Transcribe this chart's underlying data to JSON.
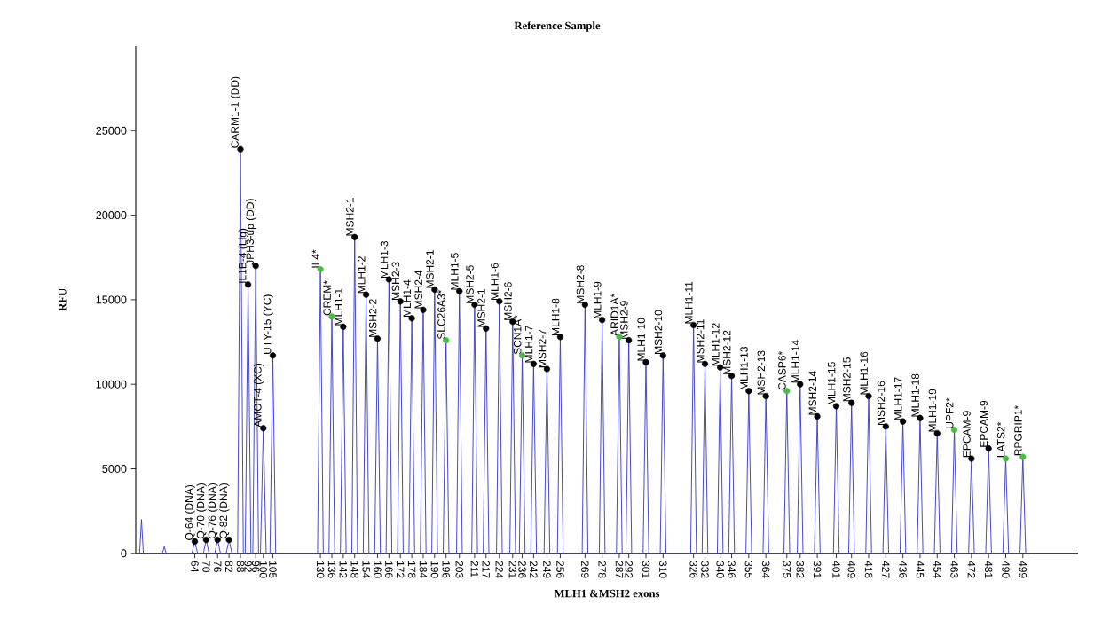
{
  "chart_data": {
    "type": "line",
    "title": "Reference Sample",
    "xlabel": "MLH1 &MSH2 exons",
    "ylabel": "RFU",
    "xlim": [
      33,
      528
    ],
    "ylim": [
      0,
      30000
    ],
    "xticks": [
      64,
      70,
      76,
      82,
      88,
      92,
      96,
      100,
      105,
      130,
      136,
      142,
      148,
      154,
      160,
      166,
      172,
      178,
      184,
      190,
      196,
      203,
      211,
      217,
      224,
      231,
      236,
      242,
      249,
      256,
      269,
      278,
      287,
      292,
      301,
      310,
      326,
      332,
      340,
      346,
      355,
      364,
      375,
      382,
      391,
      401,
      409,
      418,
      427,
      436,
      445,
      454,
      463,
      472,
      481,
      490,
      499
    ],
    "yticks": [
      0,
      5000,
      10000,
      15000,
      20000,
      25000
    ],
    "series": [
      {
        "color": "#3c3cc8",
        "x": [
          33,
          35,
          36,
          37,
          47,
          48,
          49,
          62.5,
          64,
          65.5,
          68.5,
          70,
          71.5,
          74.5,
          76,
          77.5,
          80.5,
          82,
          83.5,
          86.5,
          88,
          89.5,
          90.5,
          92,
          93.5,
          94.5,
          96,
          97.5,
          98.5,
          100,
          101.5,
          103.5,
          105,
          106.5,
          128.5,
          130,
          131.5,
          134.5,
          136,
          137.5,
          140.5,
          142,
          143.5,
          146.5,
          148,
          149.5,
          152.5,
          154,
          155.5,
          158.5,
          160,
          161.5,
          164.5,
          166,
          167.5,
          170.5,
          172,
          173.5,
          176.5,
          178,
          179.5,
          182.5,
          184,
          185.5,
          188.5,
          190,
          191.5,
          194.5,
          196,
          197.5,
          201.5,
          203,
          204.5,
          209.5,
          211,
          212.5,
          215.5,
          217,
          218.5,
          222.5,
          224,
          225.5,
          229.5,
          231,
          232.5,
          234.5,
          236,
          237.5,
          240.5,
          242,
          243.5,
          247.5,
          249,
          250.5,
          254.5,
          256,
          257.5,
          267.5,
          269,
          270.5,
          276.5,
          278,
          279.5,
          285.5,
          287,
          288.5,
          290.5,
          292,
          293.5,
          299.5,
          301,
          302.5,
          308.5,
          310,
          311.5,
          324.5,
          326,
          327.5,
          330.5,
          332,
          333.5,
          338.5,
          340,
          341.5,
          344.5,
          346,
          347.5,
          353.5,
          355,
          356.5,
          362.5,
          364,
          365.5,
          373.5,
          375,
          376.5,
          380.5,
          382,
          383.5,
          389.5,
          391,
          392.5,
          399.5,
          401,
          402.5,
          407.5,
          409,
          410.5,
          416.5,
          418,
          419.5,
          425.5,
          427,
          428.5,
          434.5,
          436,
          437.5,
          443.5,
          445,
          446.5,
          452.5,
          454,
          455.5,
          461.5,
          463,
          464.5,
          470.5,
          472,
          473.5,
          479.5,
          481,
          482.5,
          488.5,
          490,
          491.5,
          497.5,
          499,
          500.5,
          503
        ],
        "values": [
          0,
          0,
          2000,
          0,
          0,
          400,
          0,
          0,
          700,
          0,
          0,
          800,
          0,
          0,
          800,
          0,
          0,
          800,
          0,
          0,
          23900,
          0,
          0,
          15900,
          0,
          0,
          17000,
          0,
          0,
          7400,
          0,
          0,
          11700,
          0,
          0,
          16800,
          0,
          0,
          14000,
          0,
          0,
          13400,
          0,
          0,
          18700,
          0,
          0,
          15300,
          0,
          0,
          12700,
          0,
          0,
          16200,
          0,
          0,
          14900,
          0,
          0,
          13900,
          0,
          0,
          14400,
          0,
          0,
          15600,
          0,
          0,
          12600,
          0,
          0,
          15500,
          0,
          0,
          14700,
          0,
          0,
          13300,
          0,
          0,
          14900,
          0,
          0,
          13700,
          0,
          0,
          11700,
          0,
          0,
          11200,
          0,
          0,
          10900,
          0,
          0,
          12800,
          0,
          0,
          14700,
          0,
          0,
          13800,
          0,
          0,
          12800,
          0,
          0,
          12600,
          0,
          0,
          11300,
          0,
          0,
          11700,
          0,
          0,
          13500,
          0,
          0,
          11200,
          0,
          0,
          11000,
          0,
          0,
          10500,
          0,
          0,
          9600,
          0,
          0,
          9300,
          0,
          0,
          9600,
          0,
          0,
          10000,
          0,
          0,
          8100,
          0,
          0,
          8700,
          0,
          0,
          8900,
          0,
          0,
          9300,
          0,
          0,
          7500,
          0,
          0,
          7800,
          0,
          0,
          8000,
          0,
          0,
          7100,
          0,
          0,
          7300,
          0,
          0,
          5600,
          0,
          0,
          6200,
          0,
          0,
          5600,
          0,
          0,
          5700,
          0,
          0
        ]
      },
      {
        "type": "scatter",
        "marker": "circle",
        "x": [
          64,
          70,
          76,
          82,
          88,
          92,
          96,
          100,
          105,
          130,
          136,
          142,
          148,
          154,
          160,
          166,
          172,
          178,
          184,
          190,
          196,
          203,
          211,
          217,
          224,
          231,
          236,
          242,
          249,
          256,
          269,
          278,
          287,
          292,
          301,
          310,
          326,
          332,
          340,
          346,
          355,
          364,
          375,
          382,
          391,
          401,
          409,
          418,
          427,
          436,
          445,
          454,
          463,
          472,
          481,
          490,
          499
        ],
        "values": [
          700,
          800,
          800,
          800,
          23900,
          15900,
          17000,
          7400,
          11700,
          16800,
          14000,
          13400,
          18700,
          15300,
          12700,
          16200,
          14900,
          13900,
          14400,
          15600,
          12600,
          15500,
          14700,
          13300,
          14900,
          13700,
          11700,
          11200,
          10900,
          12800,
          14700,
          13800,
          12800,
          12600,
          11300,
          11700,
          13500,
          11200,
          11000,
          10500,
          9600,
          9300,
          9600,
          10000,
          8100,
          8700,
          8900,
          9300,
          7500,
          7800,
          8000,
          7100,
          7300,
          5600,
          6200,
          5600,
          5700
        ],
        "colors": [
          "#000000",
          "#000000",
          "#000000",
          "#000000",
          "#000000",
          "#000000",
          "#000000",
          "#000000",
          "#000000",
          "#4cbb47",
          "#4cbb47",
          "#000000",
          "#000000",
          "#000000",
          "#000000",
          "#000000",
          "#000000",
          "#000000",
          "#000000",
          "#000000",
          "#4cbb47",
          "#000000",
          "#000000",
          "#000000",
          "#000000",
          "#000000",
          "#4cbb47",
          "#000000",
          "#000000",
          "#000000",
          "#000000",
          "#000000",
          "#4cbb47",
          "#000000",
          "#000000",
          "#000000",
          "#000000",
          "#000000",
          "#000000",
          "#000000",
          "#000000",
          "#000000",
          "#4cbb47",
          "#000000",
          "#000000",
          "#000000",
          "#000000",
          "#000000",
          "#000000",
          "#000000",
          "#000000",
          "#000000",
          "#4cbb47",
          "#000000",
          "#000000",
          "#4cbb47",
          "#4cbb47"
        ]
      }
    ],
    "annotations": [
      {
        "text": "Q-64 (DNA)",
        "x": 64,
        "y": 700
      },
      {
        "text": "Q-70 (DNA)",
        "x": 70,
        "y": 800
      },
      {
        "text": "Q-76 (DNA)",
        "x": 76,
        "y": 800
      },
      {
        "text": "Q-82 (DNA)",
        "x": 82,
        "y": 800
      },
      {
        "text": "CARM1-1 (DD)",
        "x": 88,
        "y": 23900
      },
      {
        "text": "IL1B-4 (Lig)",
        "x": 92,
        "y": 15900
      },
      {
        "text": "JPH3-up (DD)",
        "x": 96,
        "y": 17000
      },
      {
        "text": "AMOT-4 (XC)",
        "x": 100,
        "y": 7400
      },
      {
        "text": "UTY-15 (YC)",
        "x": 105,
        "y": 11700
      },
      {
        "text": "IL4*",
        "x": 130,
        "y": 16800
      },
      {
        "text": "CREM*",
        "x": 136,
        "y": 14000
      },
      {
        "text": "MLH1-1",
        "x": 142,
        "y": 13400
      },
      {
        "text": "MSH2-1",
        "x": 148,
        "y": 18700
      },
      {
        "text": "MLH1-2",
        "x": 154,
        "y": 15300
      },
      {
        "text": "MSH2-2",
        "x": 160,
        "y": 12700
      },
      {
        "text": "MLH1-3",
        "x": 166,
        "y": 16200
      },
      {
        "text": "MSH2-3",
        "x": 172,
        "y": 14900
      },
      {
        "text": "MLH1-4",
        "x": 178,
        "y": 13900
      },
      {
        "text": "MSH2-4",
        "x": 184,
        "y": 14400
      },
      {
        "text": "MSH2-1",
        "x": 190,
        "y": 15600
      },
      {
        "text": "SLC26A3*",
        "x": 196,
        "y": 12600
      },
      {
        "text": "MLH1-5",
        "x": 203,
        "y": 15500
      },
      {
        "text": "MSH2-5",
        "x": 211,
        "y": 14700
      },
      {
        "text": "MSH2-1",
        "x": 217,
        "y": 13300
      },
      {
        "text": "MLH1-6",
        "x": 224,
        "y": 14900
      },
      {
        "text": "MSH2-6",
        "x": 231,
        "y": 13700
      },
      {
        "text": "SCN1A*",
        "x": 236,
        "y": 11700
      },
      {
        "text": "MLH1-7",
        "x": 242,
        "y": 11200
      },
      {
        "text": "MSH2-7",
        "x": 249,
        "y": 10900
      },
      {
        "text": "MLH1-8",
        "x": 256,
        "y": 12800
      },
      {
        "text": "MSH2-8",
        "x": 269,
        "y": 14700
      },
      {
        "text": "MLH1-9",
        "x": 278,
        "y": 13800
      },
      {
        "text": "ARID1A*",
        "x": 287,
        "y": 12800
      },
      {
        "text": "MSH2-9",
        "x": 292,
        "y": 12600
      },
      {
        "text": "MLH1-10",
        "x": 301,
        "y": 11300
      },
      {
        "text": "MSH2-10",
        "x": 310,
        "y": 11700
      },
      {
        "text": "MLH1-11",
        "x": 326,
        "y": 13500
      },
      {
        "text": "MSH2-11",
        "x": 332,
        "y": 11200
      },
      {
        "text": "MLH1-12",
        "x": 340,
        "y": 11000
      },
      {
        "text": "MSH2-12",
        "x": 346,
        "y": 10500
      },
      {
        "text": "MLH1-13",
        "x": 355,
        "y": 9600
      },
      {
        "text": "MSH2-13",
        "x": 364,
        "y": 9300
      },
      {
        "text": "CASP6*",
        "x": 375,
        "y": 9600
      },
      {
        "text": "MLH1-14",
        "x": 382,
        "y": 10000
      },
      {
        "text": "MSH2-14",
        "x": 391,
        "y": 8100
      },
      {
        "text": "MLH1-15",
        "x": 401,
        "y": 8700
      },
      {
        "text": "MSH2-15",
        "x": 409,
        "y": 8900
      },
      {
        "text": "MLH1-16",
        "x": 418,
        "y": 9300
      },
      {
        "text": "MSH2-16",
        "x": 427,
        "y": 7500
      },
      {
        "text": "MLH1-17",
        "x": 436,
        "y": 7800
      },
      {
        "text": "MLH1-18",
        "x": 445,
        "y": 8000
      },
      {
        "text": "MLH1-19",
        "x": 454,
        "y": 7100
      },
      {
        "text": "UPF2*",
        "x": 463,
        "y": 7300
      },
      {
        "text": "EPCAM-9",
        "x": 472,
        "y": 5600
      },
      {
        "text": "EPCAM-9",
        "x": 481,
        "y": 6200
      },
      {
        "text": "LATS2*",
        "x": 490,
        "y": 5600
      },
      {
        "text": "RPGRIP1*",
        "x": 499,
        "y": 5700
      }
    ]
  }
}
